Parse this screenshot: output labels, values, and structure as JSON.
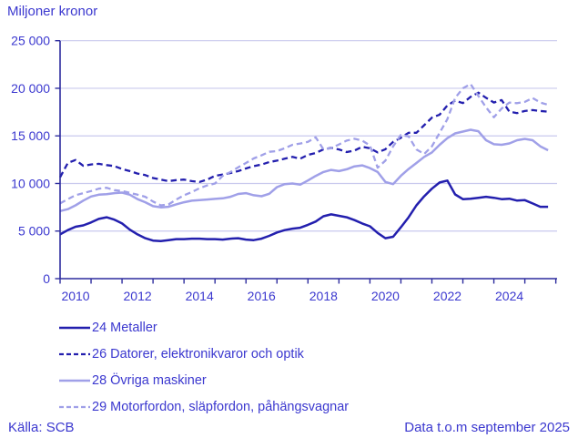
{
  "title": "Miljoner kronor",
  "footer": {
    "source": "Källa: SCB",
    "note": "Data t.o.m september 2025"
  },
  "colors": {
    "dark_line": "#231fae",
    "light_line": "#a0a0e8",
    "text": "#3b38cf",
    "grid": "#c9c9ee",
    "axis": "#2d2c9e",
    "background": "#ffffff"
  },
  "chart_data": {
    "type": "line",
    "title": "Miljoner kronor",
    "xlabel": "",
    "ylabel": "Miljoner kronor",
    "grid": "horizontal",
    "legend_position": "bottom-left",
    "xlim": [
      2010,
      2026.04
    ],
    "ylim": [
      0,
      25000
    ],
    "x_start": 2010.0,
    "x_step": 0.25,
    "y_ticks": [
      0,
      5000,
      10000,
      15000,
      20000,
      25000
    ],
    "y_tick_labels": [
      "0",
      "5 000",
      "10 000",
      "15 000",
      "20 000",
      "25 000"
    ],
    "x_ticks_minor": [
      2010,
      2011,
      2012,
      2013,
      2014,
      2015,
      2016,
      2017,
      2018,
      2019,
      2020,
      2021,
      2022,
      2023,
      2024,
      2025,
      2026
    ],
    "x_tick_labels": [
      "2010",
      "2012",
      "2014",
      "2016",
      "2018",
      "2020",
      "2022",
      "2024"
    ],
    "x_tick_label_years": [
      2010,
      2012,
      2014,
      2016,
      2018,
      2020,
      2022,
      2024
    ],
    "series": [
      {
        "name": "24 Metaller",
        "style": "solid",
        "color_key": "dark_line",
        "values": [
          4650,
          5100,
          5450,
          5600,
          5900,
          6280,
          6450,
          6200,
          5800,
          5150,
          4650,
          4250,
          4000,
          3950,
          4050,
          4150,
          4150,
          4200,
          4200,
          4150,
          4150,
          4100,
          4200,
          4250,
          4100,
          4050,
          4200,
          4500,
          4850,
          5100,
          5250,
          5350,
          5650,
          6000,
          6550,
          6750,
          6600,
          6450,
          6150,
          5800,
          5500,
          4800,
          4250,
          4400,
          5400,
          6450,
          7700,
          8650,
          9450,
          10100,
          10300,
          8850,
          8350,
          8400,
          8500,
          8600,
          8500,
          8350,
          8400,
          8200,
          8250,
          7900,
          7550,
          7550
        ]
      },
      {
        "name": "26 Datorer, elektronikvaror och optik",
        "style": "dashed",
        "color_key": "dark_line",
        "values": [
          10650,
          12150,
          12470,
          11850,
          12000,
          12060,
          11930,
          11830,
          11520,
          11300,
          11040,
          10880,
          10570,
          10410,
          10250,
          10350,
          10410,
          10250,
          10160,
          10410,
          10800,
          10950,
          11100,
          11300,
          11580,
          11830,
          11990,
          12250,
          12400,
          12600,
          12790,
          12600,
          13000,
          13200,
          13580,
          13740,
          13580,
          13300,
          13450,
          13850,
          13700,
          13260,
          13600,
          14370,
          14800,
          15330,
          15330,
          16120,
          16920,
          17230,
          18200,
          18700,
          18450,
          19100,
          19550,
          19000,
          18500,
          18760,
          17550,
          17390,
          17610,
          17710,
          17610,
          17550
        ]
      },
      {
        "name": "28 Övriga maskiner",
        "style": "solid",
        "color_key": "light_line",
        "values": [
          7100,
          7300,
          7700,
          8200,
          8630,
          8820,
          8880,
          8980,
          9040,
          8820,
          8350,
          8030,
          7620,
          7490,
          7550,
          7810,
          8030,
          8190,
          8250,
          8310,
          8380,
          8440,
          8600,
          8900,
          8980,
          8760,
          8660,
          8920,
          9615,
          9930,
          9995,
          9870,
          10310,
          10790,
          11200,
          11420,
          11300,
          11490,
          11800,
          11900,
          11615,
          11200,
          10160,
          9930,
          10800,
          11520,
          12150,
          12790,
          13260,
          14060,
          14760,
          15260,
          15450,
          15640,
          15490,
          14540,
          14120,
          14060,
          14210,
          14540,
          14690,
          14540,
          13900,
          13490
        ]
      },
      {
        "name": "29 Motorfordon, släpfordon, påhängsvagnar",
        "style": "dashed",
        "color_key": "light_line",
        "values": [
          7900,
          8350,
          8760,
          8980,
          9200,
          9450,
          9550,
          9300,
          9200,
          9010,
          8820,
          8600,
          8100,
          7700,
          7800,
          8300,
          8760,
          9100,
          9500,
          9800,
          10000,
          10800,
          11200,
          11700,
          12150,
          12630,
          12950,
          13330,
          13400,
          13700,
          14060,
          14200,
          14370,
          14850,
          13600,
          13700,
          14100,
          14500,
          14700,
          14500,
          14000,
          11650,
          12400,
          13900,
          15100,
          14950,
          13580,
          13100,
          13900,
          15330,
          16760,
          18980,
          20000,
          20450,
          19200,
          18000,
          16950,
          17870,
          18500,
          18440,
          18570,
          18980,
          18500,
          18260
        ]
      }
    ]
  }
}
